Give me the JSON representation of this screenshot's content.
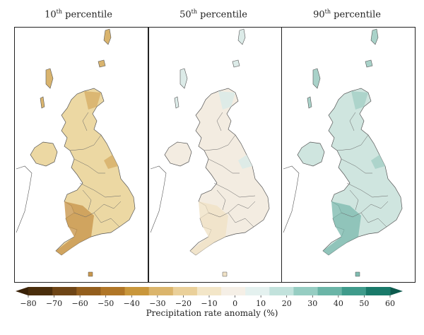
{
  "panels": [
    {
      "title_main": "10",
      "title_sup": "th",
      "title_rest": " percentile",
      "fill": "#ecd8a3",
      "dark": "#d9b46e",
      "darker": "#c9974d"
    },
    {
      "title_main": "50",
      "title_sup": "th",
      "title_rest": " percentile",
      "fill": "#f3ece1",
      "dark": "#dcebe8",
      "darker": "#f0e2c6"
    },
    {
      "title_main": "90",
      "title_sup": "th",
      "title_rest": " percentile",
      "fill": "#cfe5df",
      "dark": "#a9d2c9",
      "darker": "#7fbcb0"
    }
  ],
  "colorbar": {
    "caption": "Precipitation rate anomaly (%)",
    "ticks": [
      "−80",
      "−70",
      "−60",
      "−50",
      "−40",
      "−30",
      "−20",
      "−10",
      "0",
      "10",
      "20",
      "30",
      "40",
      "50",
      "60"
    ],
    "colors": [
      "#4a2e0c",
      "#6e4516",
      "#935e1d",
      "#b07627",
      "#c9973c",
      "#dbb56c",
      "#ead09a",
      "#f3e6c8",
      "#f5efe6",
      "#e4f1ef",
      "#c2e2dc",
      "#96cdc2",
      "#6bb5a7",
      "#3f9b8b",
      "#1a7a6a"
    ],
    "under_color": "#3a2208",
    "over_color": "#0e5a4e"
  }
}
